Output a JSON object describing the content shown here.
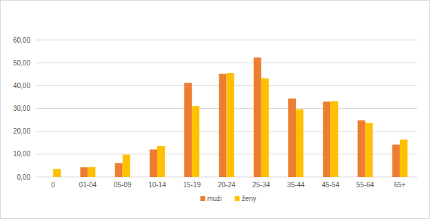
{
  "chart_data": {
    "type": "bar",
    "categories": [
      "0",
      "01-04",
      "05-09",
      "10-14",
      "15-19",
      "20-24",
      "25-34",
      "35-44",
      "45-54",
      "55-64",
      "65+"
    ],
    "series": [
      {
        "name": "muži",
        "color": "#ed7d31",
        "values": [
          null,
          4.2,
          6.0,
          12.0,
          41.2,
          45.2,
          52.3,
          34.3,
          33.0,
          24.8,
          14.2
        ]
      },
      {
        "name": "ženy",
        "color": "#ffc000",
        "values": [
          3.5,
          4.3,
          9.8,
          13.6,
          31.0,
          45.5,
          43.2,
          29.6,
          33.1,
          23.6,
          16.4
        ]
      }
    ],
    "ylim": [
      0,
      60
    ],
    "yticks": [
      {
        "value": 0,
        "label": "0,00"
      },
      {
        "value": 10,
        "label": "10,00"
      },
      {
        "value": 20,
        "label": "20,00"
      },
      {
        "value": 30,
        "label": "30,00"
      },
      {
        "value": 40,
        "label": "40,00"
      },
      {
        "value": 50,
        "label": "50,00"
      },
      {
        "value": 60,
        "label": "60,00"
      }
    ],
    "grid": true,
    "legend": "bottom"
  }
}
